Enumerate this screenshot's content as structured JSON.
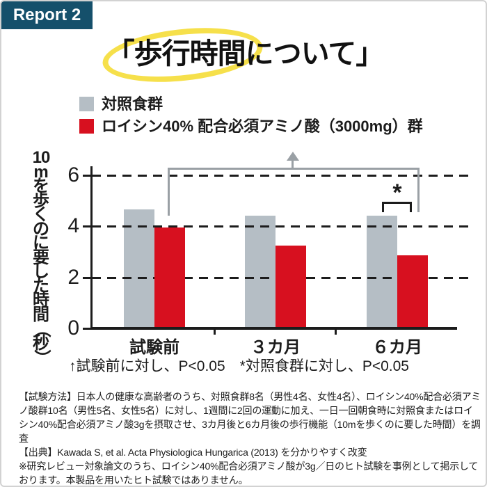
{
  "badge": {
    "label": "Report 2",
    "bg": "#15506b",
    "fg": "#ffffff"
  },
  "title": {
    "text": "「歩行時間について」",
    "highlighted_part": "歩行時間",
    "highlight_color": "#f6e04b"
  },
  "legend": {
    "items": [
      {
        "label": "対照食群",
        "color": "#b5bec5"
      },
      {
        "label": "ロイシン40% 配合必須アミノ酸（3000mg）群",
        "color": "#d7101f"
      }
    ]
  },
  "chart_data": {
    "type": "bar",
    "title": "歩行時間について",
    "ylabel": "10mを歩くのに要した時間（秒）",
    "ylabel_vertical_chars": [
      "10",
      "m",
      "を",
      "歩",
      "く",
      "の",
      "に",
      "要",
      "し",
      "た",
      "時",
      "間",
      "（",
      "秒",
      "）"
    ],
    "categories": [
      "試験前",
      "３カ月",
      "６カ月"
    ],
    "series": [
      {
        "name": "対照食群",
        "color": "#b5bec5",
        "values": [
          4.65,
          4.4,
          4.4
        ]
      },
      {
        "name": "ロイシン40% 配合必須アミノ酸（3000mg）群",
        "color": "#d7101f",
        "values": [
          3.95,
          3.25,
          2.85
        ]
      }
    ],
    "ylim": [
      0,
      6.4
    ],
    "yticks": [
      0,
      2,
      4,
      6
    ],
    "grid": {
      "style": "dashed",
      "at": [
        2,
        4,
        6
      ],
      "color": "#1c1c1c"
    },
    "legend_position": "top-left",
    "annotations": {
      "trend_bracket": {
        "symbol": "↑",
        "meaning": "試験前に対し、P<0.05",
        "from_category": "試験前",
        "to_category": "６カ月",
        "series": "ロイシン40% 配合必須アミノ酸（3000mg）群",
        "color": "#9aa0a5"
      },
      "star_bracket": {
        "symbol": "*",
        "meaning": "対照食群に対し、P<0.05",
        "category": "６カ月",
        "color": "#1c1c1c"
      },
      "note": "↑試験前に対し、P<0.05　*対照食群に対し、P<0.05"
    }
  },
  "footnote": {
    "method": "【試験方法】日本人の健康な高齢者のうち、対照食群8名（男性4名、女性4名）、ロイシン40%配合必須アミノ酸群10名（男性5名、女性5名）に対し、1週間に2回の運動に加え、一日一回朝食時に対照食またはロイシン40%配合必須アミノ酸3gを摂取させ、3カ月後と6カ月後の歩行機能（10mを歩くのに要した時間）を調査",
    "source": "【出典】Kawada S, et al. Acta Physiologica Hungarica (2013) を分かりやすく改変",
    "disclaimer": "※研究レビュー対象論文のうち、ロイシン40%配合必須アミノ酸が3g／日のヒト試験を事例として掲示しております。本製品を用いたヒト試験ではありません。"
  }
}
